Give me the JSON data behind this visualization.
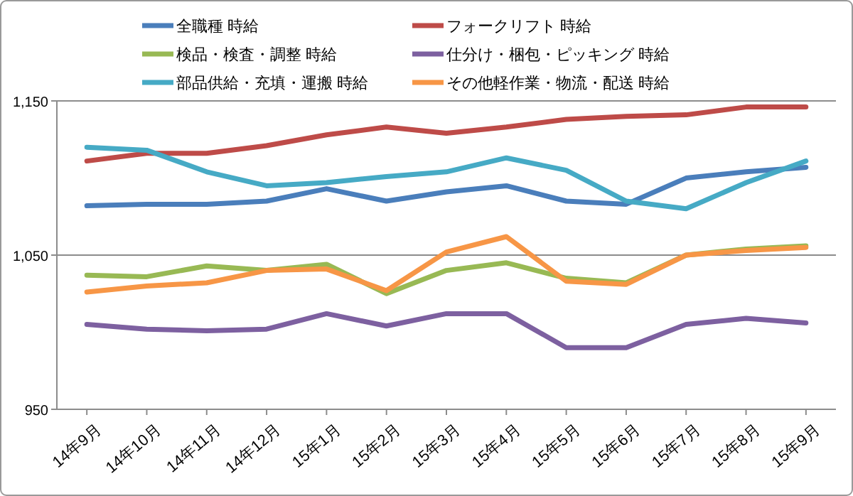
{
  "chart_data": {
    "type": "line",
    "categories": [
      "14年9月",
      "14年10月",
      "14年11月",
      "14年12月",
      "15年1月",
      "15年2月",
      "15年3月",
      "15年4月",
      "15年5月",
      "15年6月",
      "15年7月",
      "15年8月",
      "15年9月"
    ],
    "ylim": [
      950,
      1150
    ],
    "yticks": [
      {
        "value": 950,
        "label": "950"
      },
      {
        "value": 1050,
        "label": "1,050"
      },
      {
        "value": 1150,
        "label": "1,150"
      }
    ],
    "grid": "y",
    "legend": "top",
    "marker": "none",
    "line_style": "solid",
    "series": [
      {
        "name": "全職種 時給",
        "color": "#4a7ebb",
        "values": [
          1082,
          1083,
          1083,
          1085,
          1093,
          1085,
          1091,
          1095,
          1085,
          1083,
          1100,
          1104,
          1107
        ]
      },
      {
        "name": "フォークリフト 時給",
        "color": "#be4b48",
        "values": [
          1111,
          1116,
          1116,
          1121,
          1128,
          1133,
          1129,
          1133,
          1138,
          1140,
          1141,
          1146,
          1146
        ]
      },
      {
        "name": "検品・検査・調整 時給",
        "color": "#98b954",
        "values": [
          1037,
          1036,
          1043,
          1040,
          1044,
          1025,
          1040,
          1045,
          1035,
          1032,
          1050,
          1054,
          1056
        ]
      },
      {
        "name": "仕分け・梱包・ピッキング 時給",
        "color": "#7d60a0",
        "values": [
          1005,
          1002,
          1001,
          1002,
          1012,
          1004,
          1012,
          1012,
          990,
          990,
          1005,
          1009,
          1006
        ]
      },
      {
        "name": "部品供給・充填・運搬 時給",
        "color": "#46aac5",
        "values": [
          1120,
          1118,
          1104,
          1095,
          1097,
          1101,
          1104,
          1113,
          1105,
          1085,
          1080,
          1097,
          1111
        ]
      },
      {
        "name": "その他軽作業・物流・配送 時給",
        "color": "#f79646",
        "values": [
          1026,
          1030,
          1032,
          1040,
          1041,
          1027,
          1052,
          1062,
          1033,
          1031,
          1050,
          1053,
          1055
        ]
      }
    ]
  }
}
